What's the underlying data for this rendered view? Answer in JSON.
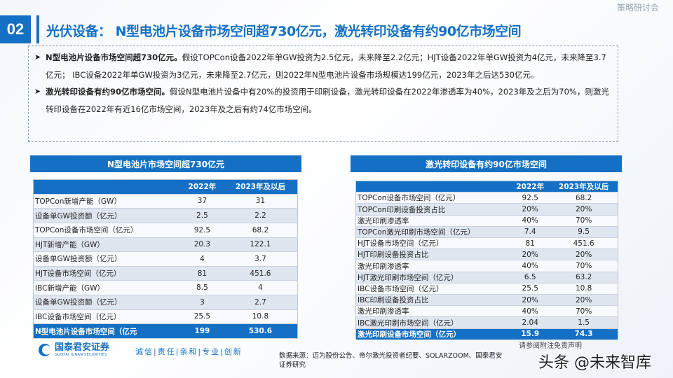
{
  "header": {
    "section_number": "02",
    "title": "光伏设备： N型电池片设备市场空间超730亿元，激光转印设备有约90亿市场空间",
    "background_text": "策略研讨会"
  },
  "bullets": [
    {
      "bold": "N型电池片设备市场空间超730亿元。",
      "text": "假设TOPCon设备2022年单GW投资为2.5亿元，未来降至2.2亿元；HJT设备2022年单GW投资为4亿元，未来降至3.7亿元； IBC设备2022年单GW投资为3亿元，未来降至2.7亿元，则2022年N型电池片设备市场规模达199亿元，2023年之后达530亿元。"
    },
    {
      "bold": "激光转印设备有约90亿市场空间。",
      "text": "假设N型电池片设备中有20%的投资用于印刷设备，激光转印设备在2022年渗透率为40%，2023年及之后为70%，则激光转印设备在2022年有近16亿市场空间，2023年及之后有约74亿市场空间。"
    }
  ],
  "left_table": {
    "title": "N型电池片市场空间超730亿元",
    "columns": [
      "",
      "2022年",
      "2023年及以后"
    ],
    "rows": [
      [
        "TOPCon新增产能（GW）",
        "37",
        "31"
      ],
      [
        "设备单GW投资额（亿元）",
        "2.5",
        "2.2"
      ],
      [
        "TOPCon设备市场空间（亿元）",
        "92.5",
        "68.2"
      ],
      [
        "HJT新增产能（GW）",
        "20.3",
        "122.1"
      ],
      [
        "设备单GW投资额（亿元）",
        "4",
        "3.7"
      ],
      [
        "HJT设备市场空间（亿元）",
        "81",
        "451.6"
      ],
      [
        "IBC新增产能（GW）",
        "8.5",
        "4"
      ],
      [
        "设备单GW投资额（亿元）",
        "3",
        "2.7"
      ],
      [
        "IBC设备市场空间（亿元）",
        "25.5",
        "10.8"
      ]
    ],
    "total": [
      "N型电池片设备市场空间（亿元",
      "199",
      "530.6"
    ]
  },
  "right_table": {
    "title": "激光转印设备有约90亿市场空间",
    "columns": [
      "",
      "2022年",
      "2023年及以后"
    ],
    "rows": [
      [
        "TOPCon设备市场空间（亿元）",
        "92.5",
        "68.2"
      ],
      [
        "TOPCon印刷设备投资占比",
        "20%",
        "20%"
      ],
      [
        "激光印刷渗透率",
        "40%",
        "70%"
      ],
      [
        "TOPCon激光印刷市场空间（亿元）",
        "7.4",
        "9.5"
      ],
      [
        "HJT设备市场空间（亿元）",
        "81",
        "451.6"
      ],
      [
        "HJT印刷设备投资占比",
        "20%",
        "20%"
      ],
      [
        "激光印刷渗透率",
        "40%",
        "70%"
      ],
      [
        "HJT激光印刷市场空间（亿元）",
        "6.5",
        "63.2"
      ],
      [
        "IBC设备市场空间（亿元）",
        "25.5",
        "10.8"
      ],
      [
        "IBC印刷设备投资占比",
        "20%",
        "20%"
      ],
      [
        "激光印刷渗透率",
        "40%",
        "70%"
      ],
      [
        "IBC激光印刷市场空间（亿元）",
        "2.04",
        "1.5"
      ]
    ],
    "total": [
      "激光印刷设备市场空间（亿元）",
      "15.9",
      "74.3"
    ]
  },
  "footer": {
    "logo_cn": "国泰君安证券",
    "logo_en": "GUOTAI JUNAN SECURITIES",
    "slogan": "诚信|责任|亲和|专业|创新",
    "source": "数据来源：迈为股份公告、帝尔激光投资者纪要、SOLARZOOM、国泰君安证券研究",
    "disclaimer": "请参阅附注免责声明",
    "watermark": "头条 @未来智库"
  },
  "colors": {
    "brand_blue": "#1470c4"
  }
}
